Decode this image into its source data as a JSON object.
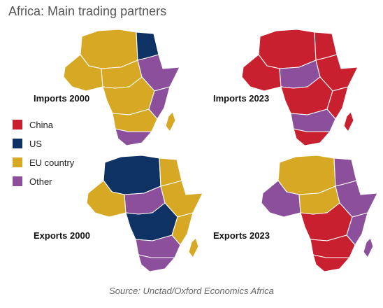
{
  "title": "Africa: Main trading partners",
  "colors": {
    "china": "#c8202f",
    "us": "#0f3264",
    "eu": "#d7a823",
    "other": "#8c4f9b"
  },
  "legend": [
    {
      "key": "china",
      "label": "China"
    },
    {
      "key": "us",
      "label": "US"
    },
    {
      "key": "eu",
      "label": "EU country"
    },
    {
      "key": "other",
      "label": "Other"
    }
  ],
  "maps": {
    "imports_2000": {
      "label": "Imports 2000",
      "north": "eu",
      "egypt": "us",
      "west": "eu",
      "sahel": "eu",
      "horn": "other",
      "central": "eu",
      "east": "other",
      "south": "eu",
      "southtip": "other",
      "madagascar": "eu"
    },
    "imports_2023": {
      "label": "Imports 2023",
      "north": "china",
      "egypt": "china",
      "west": "china",
      "sahel": "other",
      "horn": "china",
      "central": "china",
      "east": "china",
      "south": "other",
      "southtip": "china",
      "madagascar": "china"
    },
    "exports_2000": {
      "label": "Exports 2000",
      "north": "us",
      "egypt": "eu",
      "west": "eu",
      "sahel": "other",
      "horn": "eu",
      "central": "us",
      "east": "eu",
      "south": "other",
      "southtip": "other",
      "madagascar": "eu"
    },
    "exports_2023": {
      "label": "Exports 2023",
      "north": "eu",
      "egypt": "other",
      "west": "other",
      "sahel": "eu",
      "horn": "other",
      "central": "china",
      "east": "other",
      "south": "china",
      "southtip": "china",
      "madagascar": "other"
    }
  },
  "source": "Source: Unctad/Oxford Economics Africa"
}
